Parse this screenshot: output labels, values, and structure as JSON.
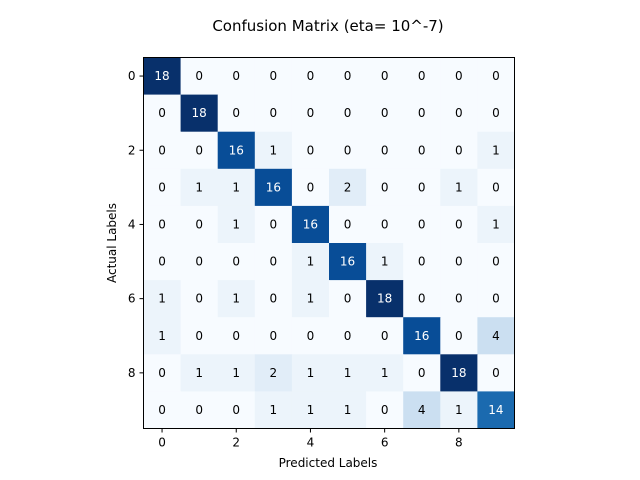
{
  "chart_data": {
    "type": "heatmap",
    "title": "Confusion Matrix (eta= 10^-7)",
    "xlabel": "Predicted Labels",
    "ylabel": "Actual Labels",
    "x_ticks": [
      "0",
      "2",
      "4",
      "6",
      "8"
    ],
    "y_ticks": [
      "0",
      "2",
      "4",
      "6",
      "8"
    ],
    "x_tick_values": [
      0,
      2,
      4,
      6,
      8
    ],
    "y_tick_values": [
      0,
      2,
      4,
      6,
      8
    ],
    "colormap": "Blues",
    "vmin": 0,
    "vmax": 18,
    "matrix": [
      [
        18,
        0,
        0,
        0,
        0,
        0,
        0,
        0,
        0,
        0
      ],
      [
        0,
        18,
        0,
        0,
        0,
        0,
        0,
        0,
        0,
        0
      ],
      [
        0,
        0,
        16,
        1,
        0,
        0,
        0,
        0,
        0,
        1
      ],
      [
        0,
        1,
        1,
        16,
        0,
        2,
        0,
        0,
        1,
        0
      ],
      [
        0,
        0,
        1,
        0,
        16,
        0,
        0,
        0,
        0,
        1
      ],
      [
        0,
        0,
        0,
        0,
        1,
        16,
        1,
        0,
        0,
        0
      ],
      [
        1,
        0,
        1,
        0,
        1,
        0,
        18,
        0,
        0,
        0
      ],
      [
        1,
        0,
        0,
        0,
        0,
        0,
        0,
        16,
        0,
        4
      ],
      [
        0,
        1,
        1,
        2,
        1,
        1,
        1,
        0,
        18,
        0
      ],
      [
        0,
        0,
        0,
        1,
        1,
        1,
        0,
        4,
        1,
        14
      ]
    ]
  }
}
